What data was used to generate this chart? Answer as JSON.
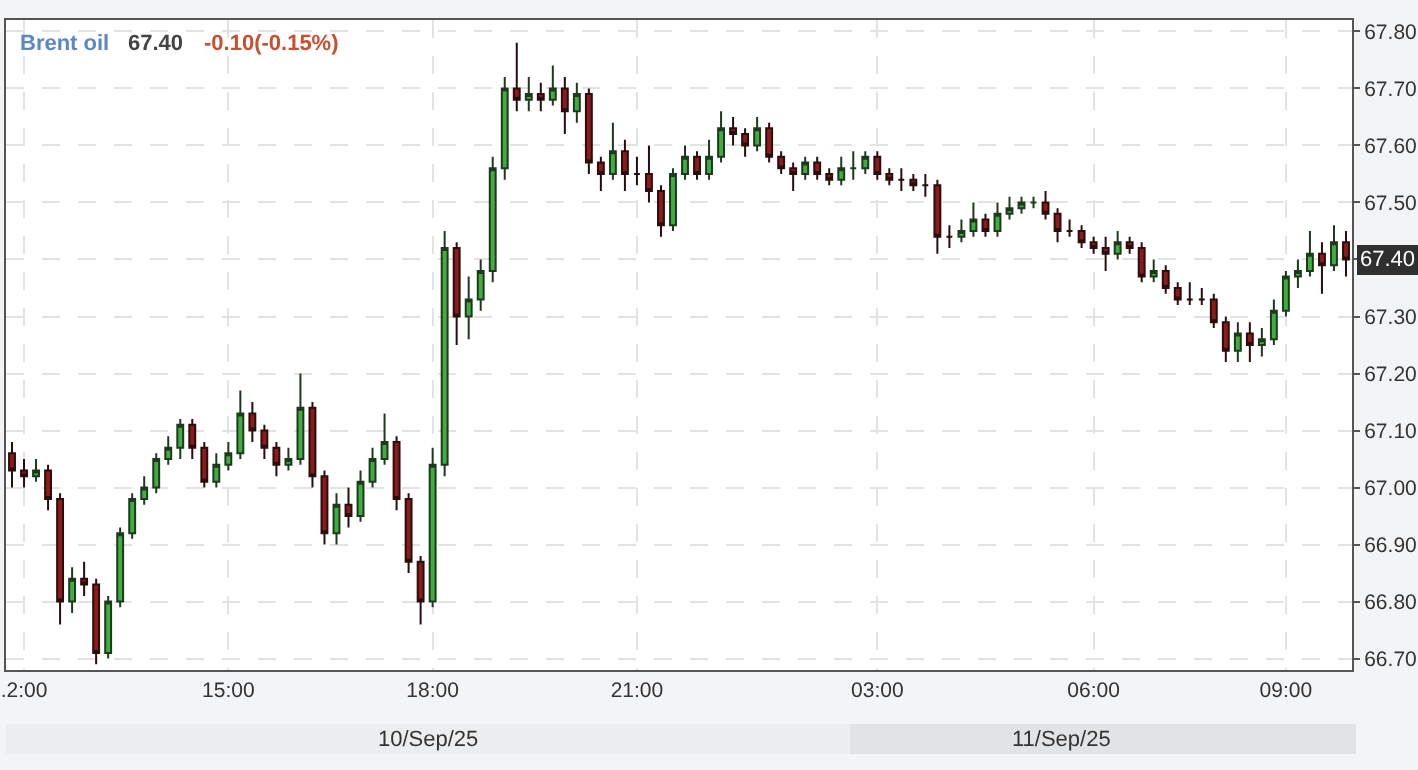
{
  "chart_data": {
    "type": "candlestick",
    "title": "Brent oil",
    "categories": [
      null,
      ".2:00",
      null,
      null,
      null,
      null,
      null,
      null,
      null,
      null,
      null,
      null,
      null,
      null,
      null,
      null,
      null,
      null,
      "15:00",
      null,
      null,
      null,
      null,
      null,
      null,
      null,
      null,
      null,
      null,
      null,
      null,
      null,
      null,
      null,
      null,
      "18:00",
      null,
      null,
      null,
      null,
      null,
      null,
      null,
      null,
      null,
      null,
      null,
      null,
      null,
      null,
      null,
      null,
      "21:00",
      null,
      null,
      null,
      null,
      null,
      null,
      null,
      null,
      null,
      null,
      null,
      null,
      null,
      null,
      null,
      null,
      null,
      null,
      null,
      "03:00",
      null,
      null,
      null,
      null,
      null,
      null,
      null,
      null,
      null,
      null,
      null,
      null,
      null,
      null,
      null,
      null,
      null,
      "06:00",
      null,
      null,
      null,
      null,
      null,
      null,
      null,
      null,
      null,
      null,
      null,
      null,
      null,
      null,
      null,
      "09:00",
      null,
      null,
      null,
      null,
      null
    ],
    "ohlc": [
      [
        67.06,
        67.08,
        67.0,
        67.03
      ],
      [
        67.03,
        67.05,
        67.0,
        67.02
      ],
      [
        67.02,
        67.05,
        67.01,
        67.03
      ],
      [
        67.03,
        67.04,
        66.96,
        66.98
      ],
      [
        66.98,
        66.99,
        66.76,
        66.8
      ],
      [
        66.8,
        66.86,
        66.78,
        66.84
      ],
      [
        66.84,
        66.87,
        66.81,
        66.83
      ],
      [
        66.83,
        66.84,
        66.69,
        66.71
      ],
      [
        66.71,
        66.81,
        66.7,
        66.8
      ],
      [
        66.8,
        66.93,
        66.79,
        66.92
      ],
      [
        66.92,
        66.99,
        66.91,
        66.98
      ],
      [
        66.98,
        67.02,
        66.97,
        67.0
      ],
      [
        67.0,
        67.06,
        66.99,
        67.05
      ],
      [
        67.05,
        67.09,
        67.04,
        67.07
      ],
      [
        67.07,
        67.12,
        67.05,
        67.11
      ],
      [
        67.11,
        67.12,
        67.05,
        67.07
      ],
      [
        67.07,
        67.08,
        67.0,
        67.01
      ],
      [
        67.01,
        67.06,
        67.0,
        67.04
      ],
      [
        67.04,
        67.08,
        67.03,
        67.06
      ],
      [
        67.06,
        67.17,
        67.05,
        67.13
      ],
      [
        67.13,
        67.15,
        67.08,
        67.1
      ],
      [
        67.1,
        67.11,
        67.05,
        67.07
      ],
      [
        67.07,
        67.08,
        67.02,
        67.04
      ],
      [
        67.04,
        67.07,
        67.03,
        67.05
      ],
      [
        67.05,
        67.2,
        67.04,
        67.14
      ],
      [
        67.14,
        67.15,
        67.0,
        67.02
      ],
      [
        67.02,
        67.03,
        66.9,
        66.92
      ],
      [
        66.92,
        66.99,
        66.9,
        66.97
      ],
      [
        66.97,
        67.0,
        66.93,
        66.95
      ],
      [
        66.95,
        67.03,
        66.94,
        67.01
      ],
      [
        67.01,
        67.07,
        67.0,
        67.05
      ],
      [
        67.05,
        67.13,
        67.04,
        67.08
      ],
      [
        67.08,
        67.09,
        66.96,
        66.98
      ],
      [
        66.98,
        66.99,
        66.85,
        66.87
      ],
      [
        66.87,
        66.88,
        66.76,
        66.8
      ],
      [
        66.8,
        67.07,
        66.79,
        67.04
      ],
      [
        67.04,
        67.45,
        67.02,
        67.42
      ],
      [
        67.42,
        67.43,
        67.25,
        67.3
      ],
      [
        67.3,
        67.37,
        67.26,
        67.33
      ],
      [
        67.33,
        67.4,
        67.31,
        67.38
      ],
      [
        67.38,
        67.58,
        67.36,
        67.56
      ],
      [
        67.56,
        67.72,
        67.54,
        67.7
      ],
      [
        67.7,
        67.78,
        67.66,
        67.68
      ],
      [
        67.68,
        67.72,
        67.66,
        67.69
      ],
      [
        67.69,
        67.71,
        67.66,
        67.68
      ],
      [
        67.68,
        67.74,
        67.67,
        67.7
      ],
      [
        67.7,
        67.72,
        67.62,
        67.66
      ],
      [
        67.66,
        67.71,
        67.64,
        67.69
      ],
      [
        67.69,
        67.7,
        67.55,
        67.57
      ],
      [
        67.57,
        67.58,
        67.52,
        67.55
      ],
      [
        67.55,
        67.64,
        67.54,
        67.59
      ],
      [
        67.59,
        67.61,
        67.52,
        67.55
      ],
      [
        67.55,
        67.58,
        67.53,
        67.55
      ],
      [
        67.55,
        67.6,
        67.5,
        67.52
      ],
      [
        67.52,
        67.53,
        67.44,
        67.46
      ],
      [
        67.46,
        67.56,
        67.45,
        67.55
      ],
      [
        67.55,
        67.6,
        67.54,
        67.58
      ],
      [
        67.58,
        67.59,
        67.54,
        67.55
      ],
      [
        67.55,
        67.61,
        67.54,
        67.58
      ],
      [
        67.58,
        67.66,
        67.57,
        67.63
      ],
      [
        67.63,
        67.65,
        67.6,
        67.62
      ],
      [
        67.62,
        67.63,
        67.58,
        67.6
      ],
      [
        67.6,
        67.65,
        67.59,
        67.63
      ],
      [
        67.63,
        67.64,
        67.57,
        67.58
      ],
      [
        67.58,
        67.59,
        67.55,
        67.56
      ],
      [
        67.56,
        67.57,
        67.52,
        67.55
      ],
      [
        67.55,
        67.58,
        67.54,
        67.57
      ],
      [
        67.57,
        67.58,
        67.54,
        67.55
      ],
      [
        67.55,
        67.56,
        67.53,
        67.54
      ],
      [
        67.54,
        67.58,
        67.53,
        67.56
      ],
      [
        67.56,
        67.59,
        67.54,
        67.56
      ],
      [
        67.56,
        67.59,
        67.55,
        67.58
      ],
      [
        67.58,
        67.59,
        67.54,
        67.55
      ],
      [
        67.55,
        67.56,
        67.53,
        67.54
      ],
      [
        67.54,
        67.56,
        67.52,
        67.54
      ],
      [
        67.54,
        67.55,
        67.52,
        67.53
      ],
      [
        67.53,
        67.55,
        67.51,
        67.53
      ],
      [
        67.53,
        67.54,
        67.41,
        67.44
      ],
      [
        67.44,
        67.46,
        67.42,
        67.44
      ],
      [
        67.44,
        67.47,
        67.43,
        67.45
      ],
      [
        67.45,
        67.5,
        67.44,
        67.47
      ],
      [
        67.47,
        67.48,
        67.44,
        67.45
      ],
      [
        67.45,
        67.5,
        67.44,
        67.48
      ],
      [
        67.48,
        67.51,
        67.47,
        67.49
      ],
      [
        67.49,
        67.51,
        67.48,
        67.5
      ],
      [
        67.5,
        67.51,
        67.49,
        67.5
      ],
      [
        67.5,
        67.52,
        67.47,
        67.48
      ],
      [
        67.48,
        67.49,
        67.43,
        67.45
      ],
      [
        67.45,
        67.47,
        67.44,
        67.45
      ],
      [
        67.45,
        67.46,
        67.42,
        67.43
      ],
      [
        67.43,
        67.44,
        67.41,
        67.42
      ],
      [
        67.42,
        67.44,
        67.38,
        67.41
      ],
      [
        67.41,
        67.45,
        67.4,
        67.43
      ],
      [
        67.43,
        67.44,
        67.41,
        67.42
      ],
      [
        67.42,
        67.43,
        67.36,
        67.37
      ],
      [
        67.37,
        67.4,
        67.36,
        67.38
      ],
      [
        67.38,
        67.39,
        67.34,
        67.35
      ],
      [
        67.35,
        67.36,
        67.32,
        67.33
      ],
      [
        67.33,
        67.36,
        67.32,
        67.33
      ],
      [
        67.33,
        67.35,
        67.32,
        67.33
      ],
      [
        67.33,
        67.34,
        67.28,
        67.29
      ],
      [
        67.29,
        67.3,
        67.22,
        67.24
      ],
      [
        67.24,
        67.29,
        67.22,
        67.27
      ],
      [
        67.27,
        67.29,
        67.22,
        67.25
      ],
      [
        67.25,
        67.28,
        67.23,
        67.26
      ],
      [
        67.26,
        67.33,
        67.25,
        67.31
      ],
      [
        67.31,
        67.38,
        67.3,
        67.37
      ],
      [
        67.37,
        67.4,
        67.35,
        67.38
      ],
      [
        67.38,
        67.45,
        67.37,
        67.41
      ],
      [
        67.41,
        67.43,
        67.34,
        67.39
      ],
      [
        67.39,
        67.46,
        67.38,
        67.43
      ],
      [
        67.43,
        67.45,
        67.37,
        67.4
      ]
    ],
    "ylim": [
      66.68,
      67.82
    ],
    "yticks": [
      {
        "value": 66.7,
        "label": "66.70"
      },
      {
        "value": 66.8,
        "label": "66.80"
      },
      {
        "value": 66.9,
        "label": "66.90"
      },
      {
        "value": 67.0,
        "label": "67.00"
      },
      {
        "value": 67.1,
        "label": "67.10"
      },
      {
        "value": 67.2,
        "label": "67.20"
      },
      {
        "value": 67.3,
        "label": "67.30"
      },
      {
        "value": 67.4,
        "label": null
      },
      {
        "value": 67.5,
        "label": "67.50"
      },
      {
        "value": 67.6,
        "label": "67.60"
      },
      {
        "value": 67.7,
        "label": "67.70"
      },
      {
        "value": 67.8,
        "label": "67.80"
      }
    ],
    "grid": true,
    "annotations": [
      "67.40",
      "-0.10(-0.15%)",
      "10/Sep/25",
      "11/Sep/25",
      "67.40"
    ]
  }
}
